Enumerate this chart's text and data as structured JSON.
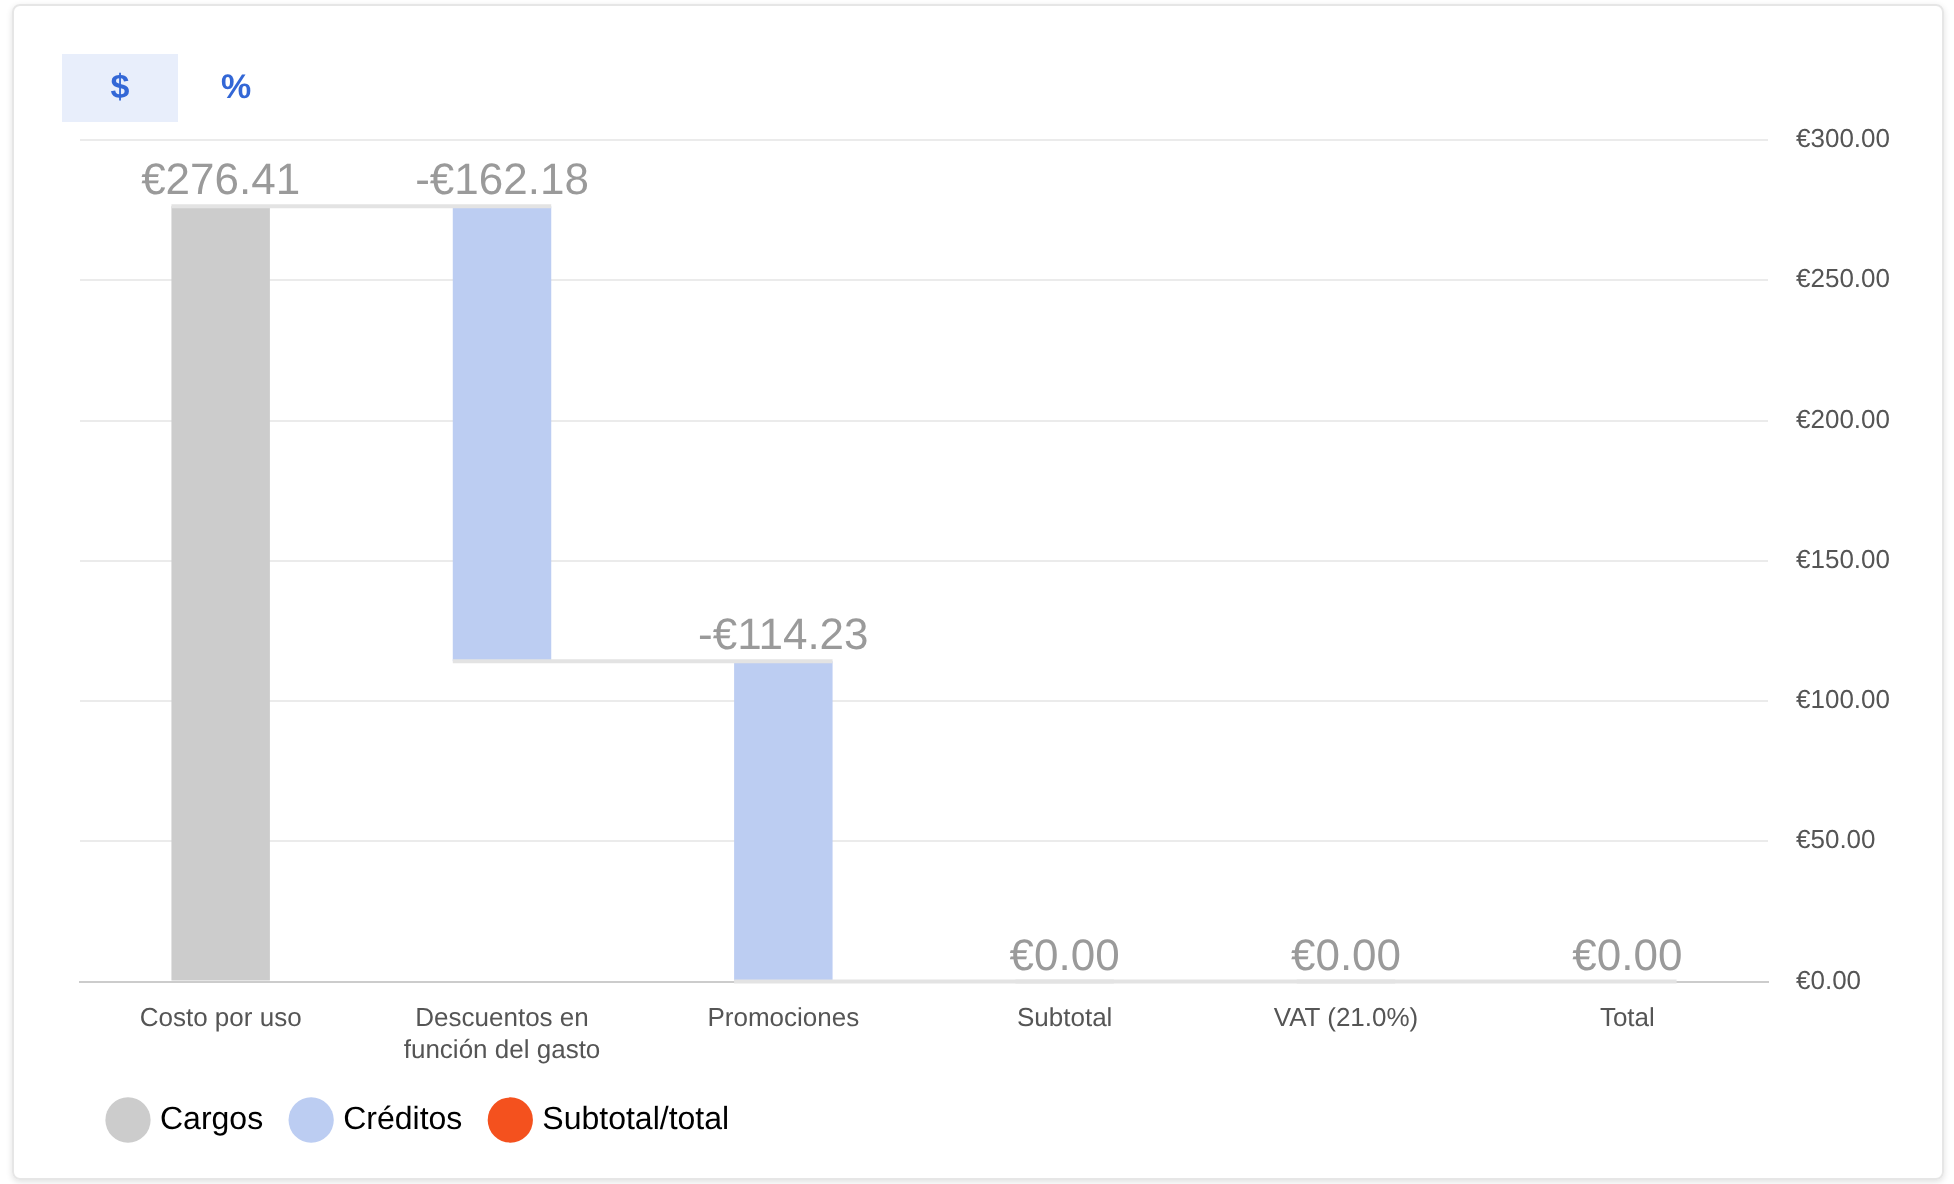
{
  "chart_data": {
    "type": "bar",
    "categories": [
      "Costo por uso",
      "Descuentos en función del gasto",
      "Promociones",
      "Subtotal",
      "VAT (21.0%)",
      "Total"
    ],
    "series": [
      {
        "name": "Cargos",
        "color": "#cccccc",
        "values": [
          276.41,
          null,
          null,
          null,
          null,
          null
        ],
        "base": [
          0,
          null,
          null,
          null,
          null,
          null
        ],
        "value_labels": [
          "€276.41",
          null,
          null,
          null,
          null,
          null
        ]
      },
      {
        "name": "Créditos",
        "color": "#bccdf2",
        "values": [
          null,
          -162.18,
          -114.23,
          null,
          null,
          null
        ],
        "base": [
          null,
          276.41,
          114.23,
          null,
          null,
          null
        ],
        "value_labels": [
          null,
          "-€162.18",
          "-€114.23",
          null,
          null,
          null
        ]
      },
      {
        "name": "Subtotal/total",
        "color": "#f4511e",
        "values": [
          null,
          null,
          null,
          0,
          0,
          0
        ],
        "value_labels": [
          null,
          null,
          null,
          "€0.00",
          "€0.00",
          "€0.00"
        ]
      }
    ],
    "ylim": [
      0,
      300
    ],
    "yticks": [
      {
        "value": 0,
        "label": "€0.00"
      },
      {
        "value": 50,
        "label": "€50.00"
      },
      {
        "value": 100,
        "label": "€100.00"
      },
      {
        "value": 150,
        "label": "€150.00"
      },
      {
        "value": 200,
        "label": "€200.00"
      },
      {
        "value": 250,
        "label": "€250.00"
      },
      {
        "value": 300,
        "label": "€300.00"
      }
    ],
    "grid": "y",
    "legend": "bottom left",
    "annotations": [
      "$",
      "%"
    ]
  }
}
